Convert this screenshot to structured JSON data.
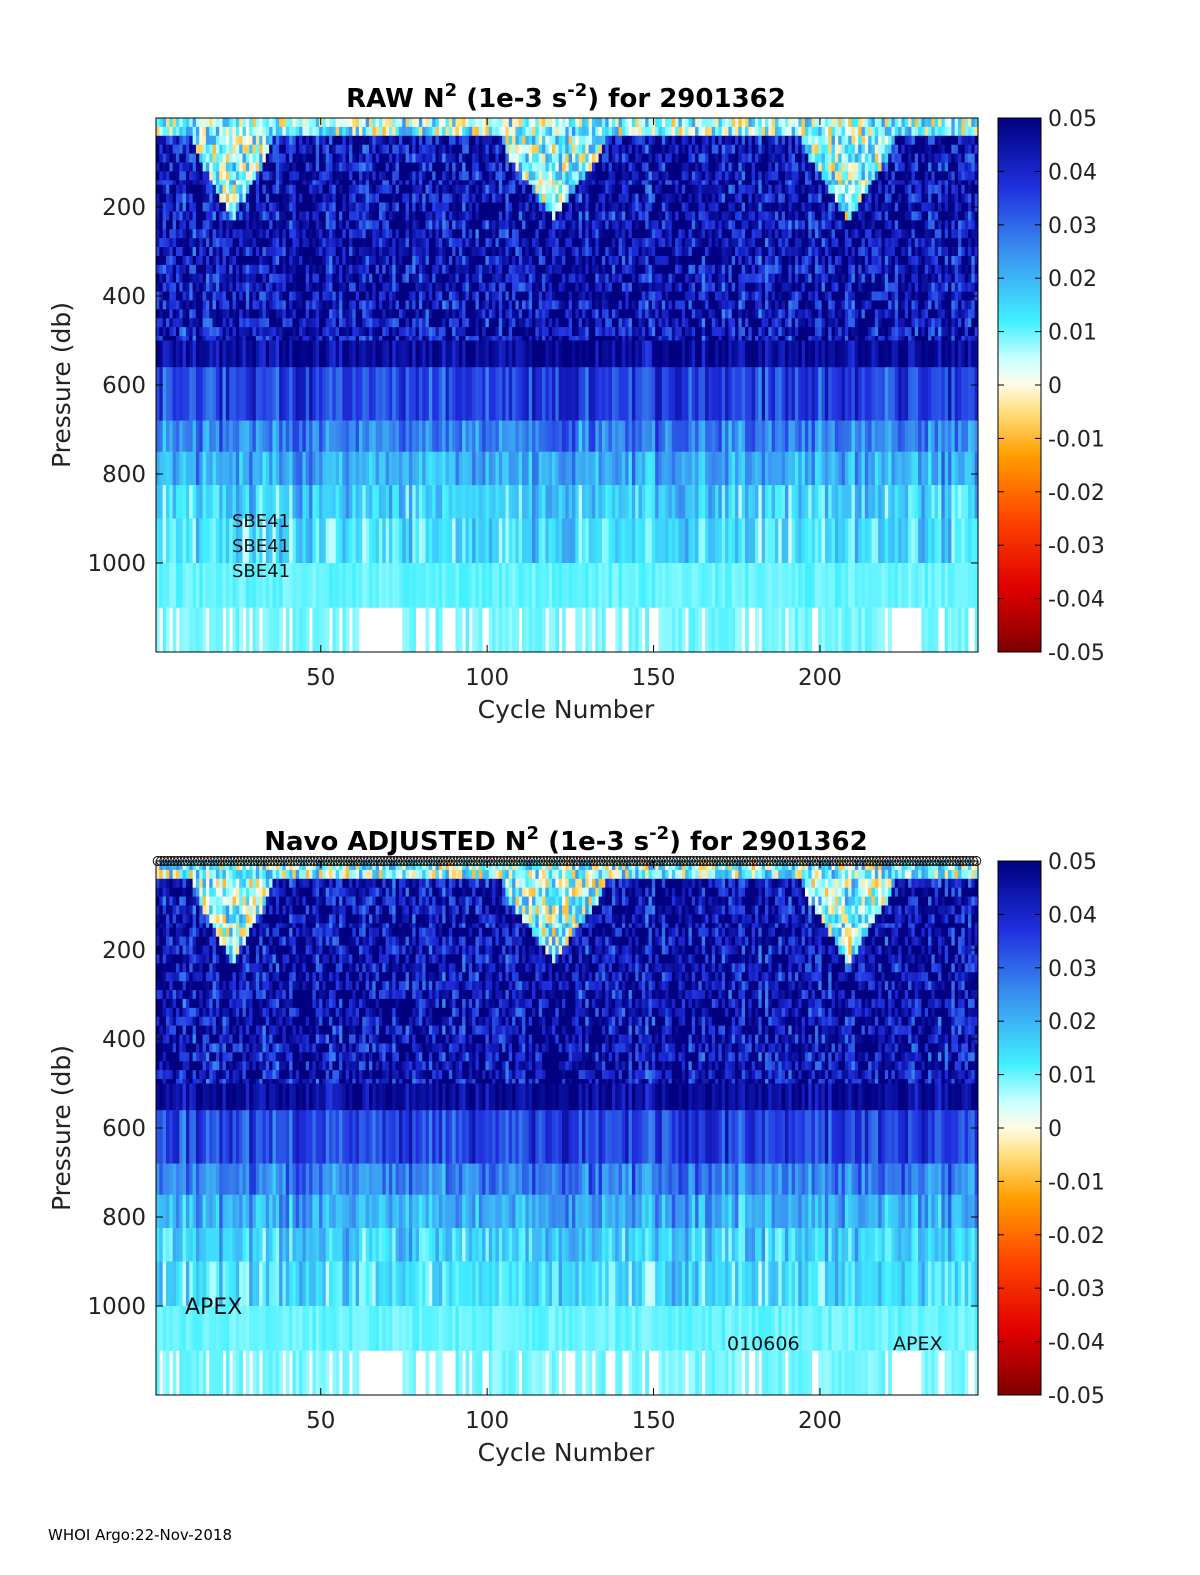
{
  "footer": "WHOI Argo:22-Nov-2018",
  "colorbar": {
    "ticks": [
      "0.05",
      "0.04",
      "0.03",
      "0.02",
      "0.01",
      "0",
      "-0.01",
      "-0.02",
      "-0.03",
      "-0.04",
      "-0.05"
    ],
    "range": [
      -0.05,
      0.05
    ],
    "colormap": "jet-like diverging: dark red (-0.05), red, orange, yellow, white/cream (0), cyan, light blue, blue, dark navy (0.05)"
  },
  "chart_data": [
    {
      "type": "heatmap",
      "title_parts": [
        "RAW N",
        "2",
        " (1e-3 s",
        "-2",
        ") for 2901362"
      ],
      "xlabel": "Cycle Number",
      "ylabel": "Pressure (db)",
      "x_ticks": [
        "50",
        "100",
        "150",
        "200"
      ],
      "x_tick_values": [
        50,
        100,
        150,
        200
      ],
      "y_ticks": [
        "200",
        "400",
        "600",
        "800",
        "1000"
      ],
      "y_tick_values": [
        200,
        400,
        600,
        800,
        1000
      ],
      "xlim": [
        1,
        247
      ],
      "ylim": [
        0,
        1200
      ],
      "clim": [
        -0.05,
        0.05
      ],
      "annotations": [
        "SBE41",
        "SBE41",
        "SBE41"
      ],
      "pressure_bands": [
        {
          "from": 0,
          "to": 40,
          "median": 0.01
        },
        {
          "from": 40,
          "to": 150,
          "median": 0.045
        },
        {
          "from": 150,
          "to": 500,
          "median": 0.045
        },
        {
          "from": 500,
          "to": 560,
          "median": 0.047
        },
        {
          "from": 560,
          "to": 680,
          "median": 0.035
        },
        {
          "from": 680,
          "to": 750,
          "median": 0.027
        },
        {
          "from": 750,
          "to": 825,
          "median": 0.021
        },
        {
          "from": 825,
          "to": 900,
          "median": 0.016
        },
        {
          "from": 900,
          "to": 1000,
          "median": 0.014
        },
        {
          "from": 1000,
          "to": 1100,
          "median": 0.01
        },
        {
          "from": 1100,
          "to": 1200,
          "median": 0.009
        }
      ],
      "surface_weak_stratification_cycles": [
        [
          12,
          35
        ],
        [
          105,
          135
        ],
        [
          195,
          222
        ]
      ]
    },
    {
      "type": "heatmap",
      "title_parts": [
        "Navo  ADJUSTED N",
        "2",
        " (1e-3 s",
        "-2",
        ") for 2901362"
      ],
      "xlabel": "Cycle Number",
      "ylabel": "Pressure (db)",
      "x_ticks": [
        "50",
        "100",
        "150",
        "200"
      ],
      "x_tick_values": [
        50,
        100,
        150,
        200
      ],
      "y_ticks": [
        "200",
        "400",
        "600",
        "800",
        "1000"
      ],
      "y_tick_values": [
        200,
        400,
        600,
        800,
        1000
      ],
      "xlim": [
        1,
        247
      ],
      "ylim": [
        0,
        1200
      ],
      "clim": [
        -0.05,
        0.05
      ],
      "annotations": [
        "APEX",
        "010606",
        "APEX"
      ],
      "pressure_bands": [
        {
          "from": 0,
          "to": 40,
          "median": 0.01
        },
        {
          "from": 40,
          "to": 150,
          "median": 0.045
        },
        {
          "from": 150,
          "to": 500,
          "median": 0.045
        },
        {
          "from": 500,
          "to": 560,
          "median": 0.047
        },
        {
          "from": 560,
          "to": 680,
          "median": 0.035
        },
        {
          "from": 680,
          "to": 750,
          "median": 0.027
        },
        {
          "from": 750,
          "to": 825,
          "median": 0.021
        },
        {
          "from": 825,
          "to": 900,
          "median": 0.016
        },
        {
          "from": 900,
          "to": 1000,
          "median": 0.014
        },
        {
          "from": 1000,
          "to": 1100,
          "median": 0.01
        },
        {
          "from": 1100,
          "to": 1200,
          "median": 0.009
        }
      ],
      "surface_weak_stratification_cycles": [
        [
          12,
          35
        ],
        [
          105,
          135
        ],
        [
          195,
          222
        ]
      ],
      "top_markers": "circle markers at every cycle along top edge"
    }
  ]
}
